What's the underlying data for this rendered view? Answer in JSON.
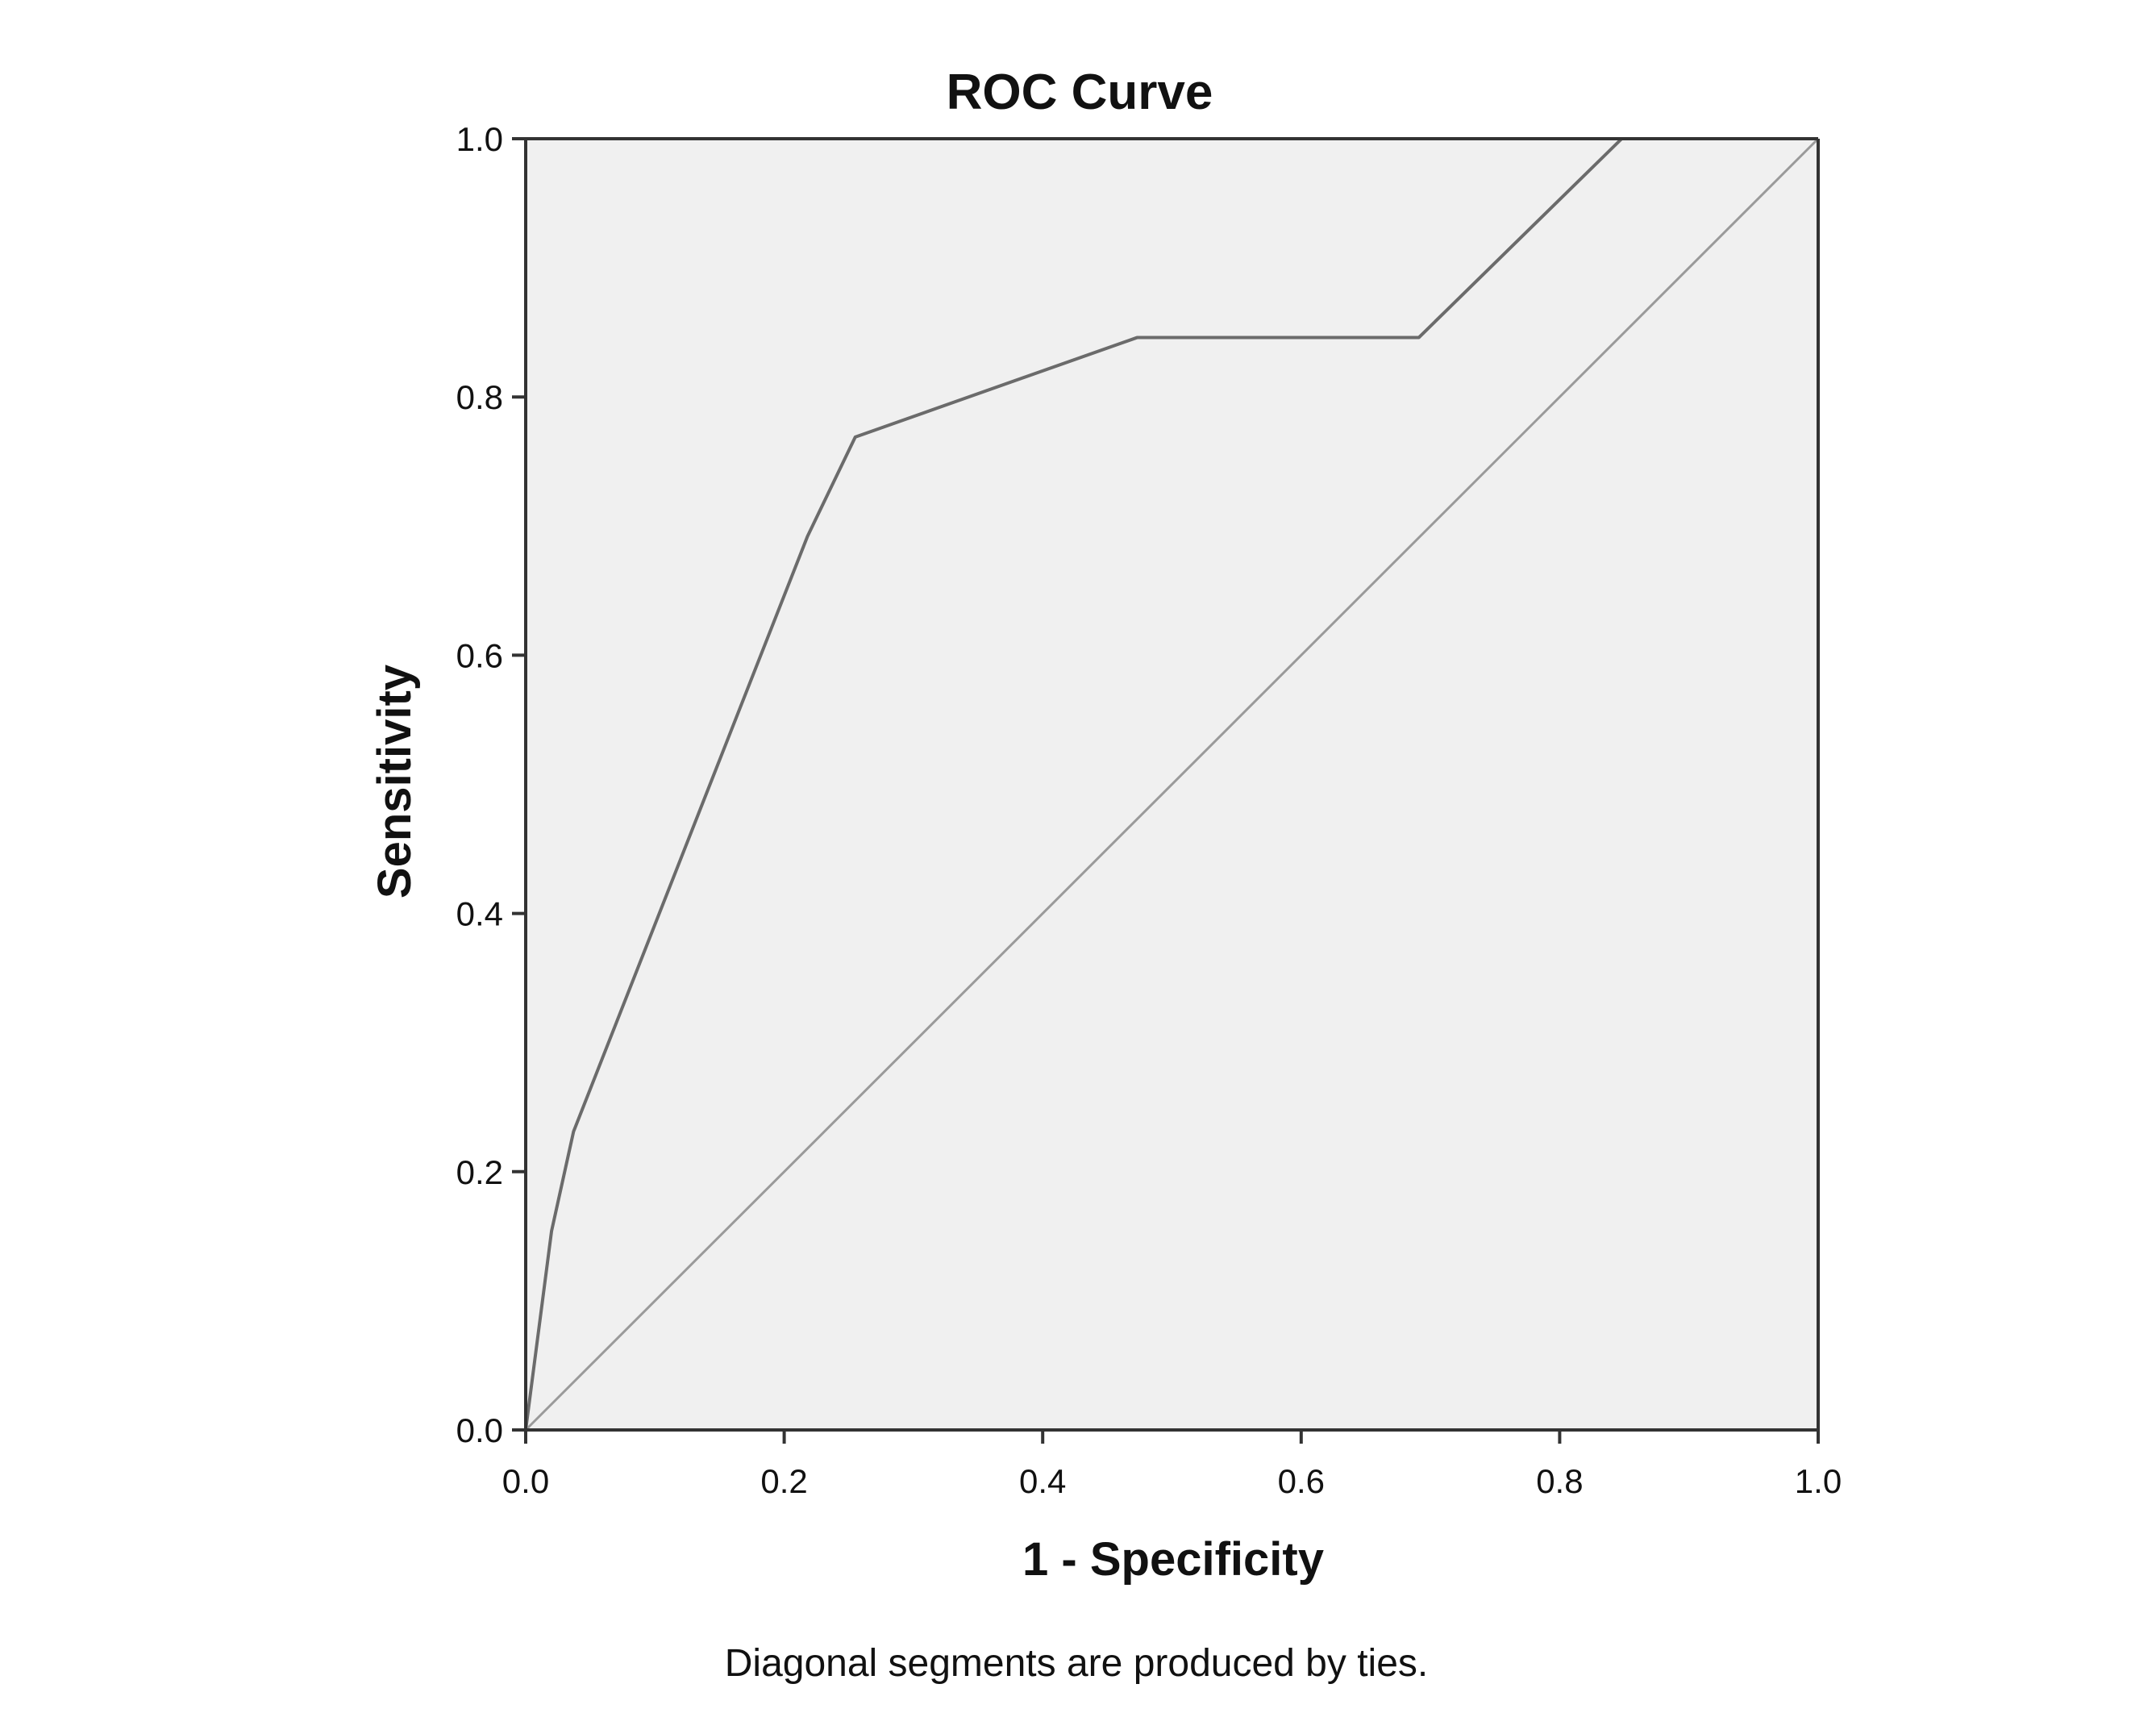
{
  "chart_data": {
    "type": "line",
    "title": "ROC Curve",
    "xlabel": "1 - Specificity",
    "ylabel": "Sensitivity",
    "footnote": "Diagonal segments are produced by ties.",
    "xlim": [
      0.0,
      1.0
    ],
    "ylim": [
      0.0,
      1.0
    ],
    "x_ticks": [
      "0.0",
      "0.2",
      "0.4",
      "0.6",
      "0.8",
      "1.0"
    ],
    "y_ticks": [
      "0.0",
      "0.2",
      "0.4",
      "0.6",
      "0.8",
      "1.0"
    ],
    "grid": false,
    "legend": "none",
    "series": [
      {
        "role": "roc-curve",
        "color": "#6b6b6b",
        "points": [
          [
            0.0,
            0.0
          ],
          [
            0.02,
            0.154
          ],
          [
            0.037,
            0.231
          ],
          [
            0.218,
            0.692
          ],
          [
            0.255,
            0.769
          ],
          [
            0.473,
            0.846
          ],
          [
            0.691,
            0.846
          ],
          [
            0.848,
            1.0
          ],
          [
            1.0,
            1.0
          ]
        ]
      },
      {
        "role": "reference-line",
        "color": "#9a9a9a",
        "points": [
          [
            0.0,
            0.0
          ],
          [
            1.0,
            1.0
          ]
        ]
      }
    ],
    "colors": {
      "plot_background": "#f0f0f0",
      "axis": "#333333",
      "text": "#111111"
    }
  }
}
